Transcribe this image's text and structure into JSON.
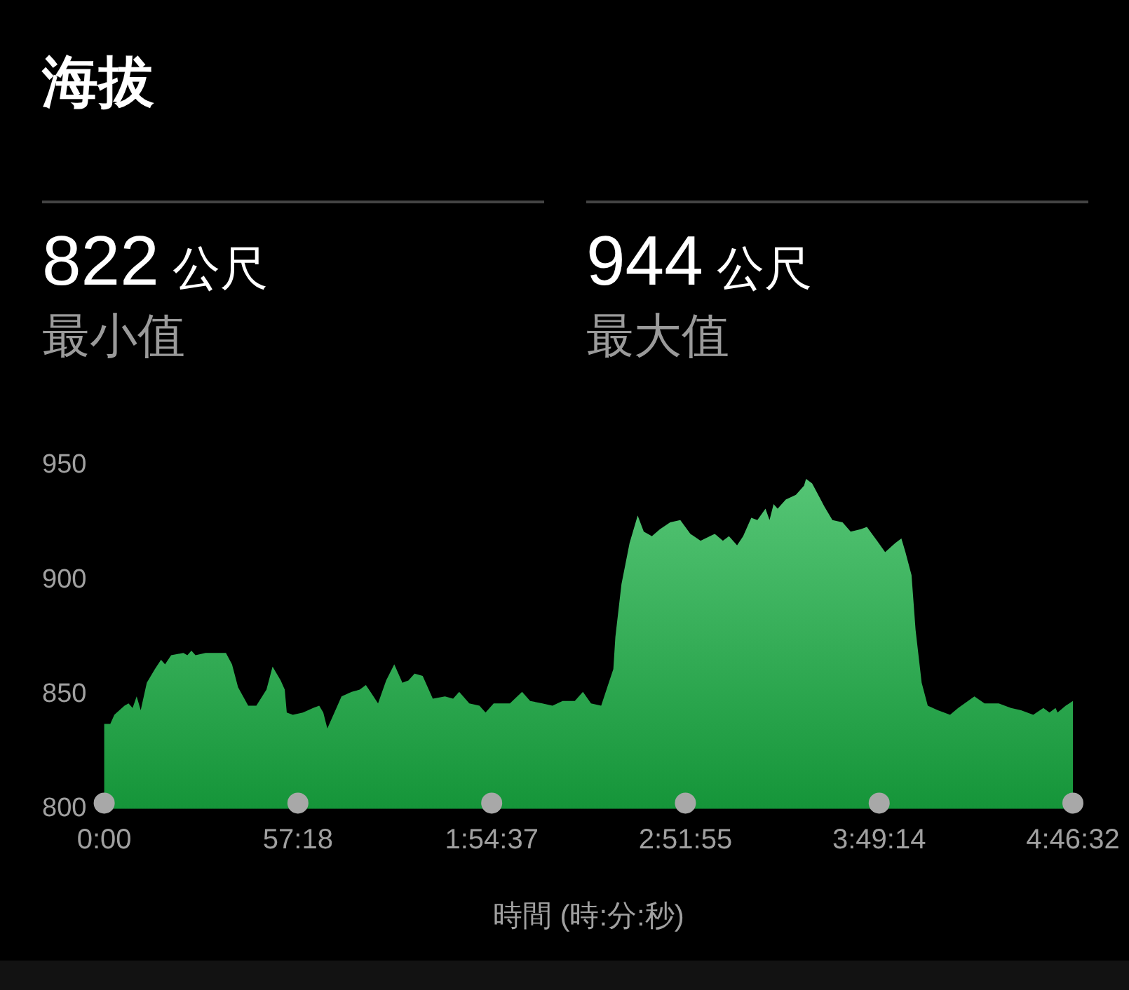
{
  "chart_data": {
    "type": "area",
    "title": "海拔",
    "xlabel": "時間 (時:分:秒)",
    "annotations": [
      "822 公尺",
      "最小值",
      "944 公尺",
      "最大值"
    ],
    "x": [
      0,
      108,
      180,
      360,
      432,
      504,
      576,
      648,
      756,
      900,
      1008,
      1080,
      1188,
      1404,
      1476,
      1548,
      1620,
      1800,
      2160,
      2268,
      2376,
      2556,
      2700,
      2880,
      2988,
      3132,
      3204,
      3240,
      3348,
      3528,
      3708,
      3816,
      3888,
      3960,
      4068,
      4212,
      4392,
      4536,
      4644,
      4752,
      4860,
      5004,
      5148,
      5292,
      5400,
      5508,
      5652,
      5832,
      6048,
      6192,
      6300,
      6480,
      6660,
      6768,
      6912,
      7200,
      7416,
      7560,
      7776,
      7956,
      8136,
      8352,
      8496,
      8640,
      8820,
      8928,
      9036,
      9072,
      9180,
      9324,
      9468,
      9576,
      9720,
      9864,
      10044,
      10224,
      10404,
      10584,
      10836,
      10980,
      11088,
      11232,
      11340,
      11484,
      11592,
      11736,
      11808,
      11880,
      11952,
      12096,
      12276,
      12420,
      12456,
      12564,
      12672,
      12780,
      12924,
      13104,
      13248,
      13428,
      13536,
      13716,
      13860,
      14040,
      14148,
      14220,
      14328,
      14400,
      14508,
      14616,
      14796,
      15012,
      15156,
      15444,
      15624,
      15876,
      16092,
      16272,
      16488,
      16668,
      16776,
      16884,
      16920,
      17064,
      17192
    ],
    "values": [
      837,
      837,
      841,
      845,
      846,
      844,
      849,
      843,
      855,
      861,
      865,
      863,
      867,
      868,
      867,
      869,
      867,
      868,
      868,
      863,
      853,
      845,
      845,
      852,
      862,
      856,
      852,
      842,
      841,
      842,
      844,
      845,
      842,
      835,
      841,
      849,
      851,
      852,
      854,
      850,
      846,
      856,
      863,
      855,
      856,
      859,
      858,
      848,
      849,
      848,
      851,
      846,
      845,
      842,
      846,
      846,
      851,
      847,
      846,
      845,
      847,
      847,
      851,
      846,
      845,
      853,
      861,
      875,
      898,
      916,
      928,
      921,
      919,
      922,
      925,
      926,
      920,
      917,
      920,
      917,
      919,
      915,
      919,
      927,
      926,
      931,
      926,
      933,
      931,
      935,
      937,
      941,
      944,
      942,
      937,
      932,
      926,
      925,
      921,
      922,
      923,
      917,
      912,
      916,
      918,
      912,
      902,
      878,
      855,
      845,
      843,
      841,
      844,
      849,
      846,
      846,
      844,
      843,
      841,
      844,
      842,
      844,
      842,
      845,
      847
    ],
    "color": "#2db052",
    "xlim": [
      0,
      17192
    ],
    "xticks": [
      {
        "value": 0,
        "label": "0:00"
      },
      {
        "value": 3438,
        "label": "57:18"
      },
      {
        "value": 6877,
        "label": "1:54:37"
      },
      {
        "value": 10315,
        "label": "2:51:55"
      },
      {
        "value": 13754,
        "label": "3:49:14"
      },
      {
        "value": 17192,
        "label": "4:46:32"
      }
    ],
    "ylim": [
      800,
      950
    ],
    "yticks": [
      800,
      850,
      900,
      950
    ]
  }
}
